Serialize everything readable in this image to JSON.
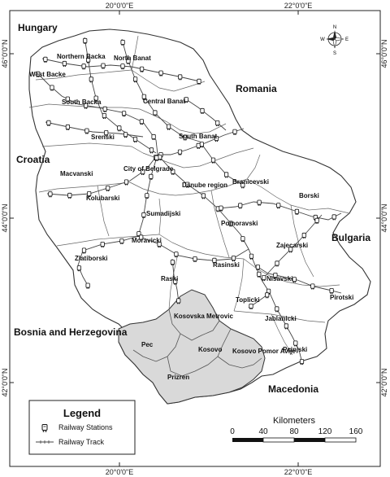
{
  "coordinates": {
    "top": [
      "20°0'0\"E",
      "22°0'0\"E"
    ],
    "bottom": [
      "20°0'0\"E",
      "22°0'0\"E"
    ],
    "left": [
      "46°0'0\"N",
      "44°0'0\"N",
      "42°0'0\"N"
    ],
    "right": [
      "46°0'0\"N",
      "44°0'0\"N",
      "42°0'0\"N"
    ]
  },
  "countries": [
    "Hungary",
    "Romania",
    "Croatia",
    "Bulgaria",
    "Bosnia and Herzegovina",
    "Macedonia"
  ],
  "regions": [
    "Northern Backa",
    "North Banat",
    "West Backe",
    "South Backa",
    "Central Banat",
    "Srenski",
    "South Banat",
    "City of Belgrade",
    "Macvanski",
    "Kolubarski",
    "Danube region",
    "Branicevski",
    "Borski",
    "Sumadijski",
    "Pomoravski",
    "Zajecarski",
    "Moravicki",
    "Zlatiborski",
    "Rasinski",
    "Nisavski",
    "Raski",
    "Toplicki",
    "Pirotski",
    "Jablanicki",
    "Pcinjski"
  ],
  "kosovo_regions": [
    "Kosovska Metrovic",
    "Pec",
    "Kosovo",
    "Kosovo Pomor Avlje",
    "Prizren"
  ],
  "compass": {
    "N": "N",
    "S": "S",
    "E": "E",
    "W": "W"
  },
  "legend": {
    "title": "Legend",
    "station_label": "Railway Stations",
    "track_label": "Railway Track"
  },
  "scale": {
    "title": "Kilometers",
    "ticks": [
      "0",
      "40",
      "80",
      "120",
      "160"
    ]
  },
  "colors": {
    "kosovo_fill": "#d9d9d9",
    "border": "#333333",
    "track": "#444444"
  }
}
